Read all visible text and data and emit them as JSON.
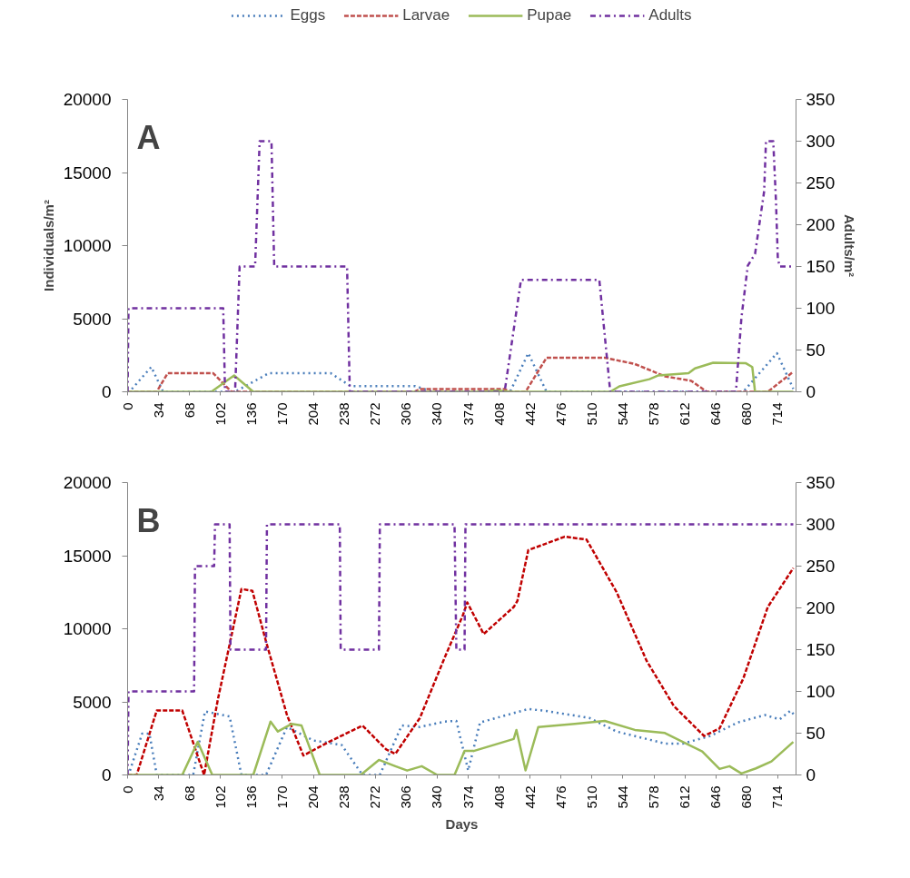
{
  "chart_data": [
    {
      "type": "line",
      "annotations": [
        "A"
      ],
      "ylabel": "Individuals/m²",
      "y2label": "Adults/m²",
      "legend": "top",
      "xlim": [
        0,
        734
      ],
      "xticks": [
        0,
        34,
        68,
        102,
        136,
        170,
        204,
        238,
        272,
        306,
        340,
        374,
        408,
        442,
        476,
        510,
        544,
        578,
        612,
        646,
        680,
        714
      ],
      "ylim": [
        0,
        20000
      ],
      "yticks": [
        0,
        5000,
        10000,
        15000,
        20000
      ],
      "y2lim": [
        0,
        350
      ],
      "y2ticks": [
        0,
        50,
        100,
        150,
        200,
        250,
        300,
        350
      ],
      "series": [
        {
          "name": "Eggs",
          "color": "#4a7ebb",
          "line_style": "dotted",
          "x": [
            0,
            2,
            26,
            39,
            118,
            155,
            223,
            245,
            316,
            335,
            420,
            440,
            460,
            676,
            713,
            731
          ],
          "values": [
            0,
            0,
            1700,
            0,
            0,
            1270,
            1270,
            390,
            390,
            0,
            0,
            2640,
            0,
            0,
            2640,
            200
          ]
        },
        {
          "name": "Larvae",
          "color": "#c0504d",
          "line_style": "dashed",
          "x": [
            0,
            32,
            44,
            94,
            114,
            315,
            321,
            414,
            420,
            437,
            460,
            524,
            557,
            590,
            619,
            636,
            703,
            731
          ],
          "values": [
            0,
            0,
            1270,
            1270,
            0,
            0,
            180,
            180,
            0,
            0,
            2330,
            2330,
            1900,
            1060,
            750,
            0,
            0,
            1370
          ]
        },
        {
          "name": "Pupae",
          "color": "#9bbb59",
          "line_style": "solid",
          "x": [
            0,
            92,
            117,
            138,
            391,
            405,
            420,
            530,
            540,
            573,
            583,
            616,
            623,
            643,
            679,
            686,
            689,
            731
          ],
          "values": [
            0,
            0,
            1120,
            0,
            0,
            100,
            0,
            0,
            370,
            860,
            1120,
            1270,
            1600,
            1990,
            1950,
            1690,
            0,
            0
          ]
        },
        {
          "name": "Adults",
          "color": "#7030a0",
          "line_style": "dashdot",
          "axis": "y2",
          "x": [
            0,
            1,
            105,
            107,
            118,
            123,
            140,
            145,
            158,
            161,
            241,
            244,
            414,
            432,
            518,
            530,
            668,
            674,
            681,
            689,
            699,
            701,
            709,
            712,
            714,
            716,
            731
          ],
          "values": [
            0,
            100,
            100,
            0,
            0,
            150,
            150,
            300,
            300,
            150,
            150,
            0,
            0,
            134,
            134,
            0,
            0,
            88,
            151,
            165,
            240,
            300,
            300,
            228,
            160,
            150,
            150
          ]
        }
      ]
    },
    {
      "type": "line",
      "annotations": [
        "B"
      ],
      "xlabel": "Days",
      "xlim": [
        0,
        734
      ],
      "xticks": [
        0,
        34,
        68,
        102,
        136,
        170,
        204,
        238,
        272,
        306,
        340,
        374,
        408,
        442,
        476,
        510,
        544,
        578,
        612,
        646,
        680,
        714
      ],
      "ylim": [
        0,
        20000
      ],
      "yticks": [
        0,
        5000,
        10000,
        15000,
        20000
      ],
      "y2lim": [
        0,
        350
      ],
      "y2ticks": [
        0,
        50,
        100,
        150,
        200,
        250,
        300,
        350
      ],
      "series": [
        {
          "color": "#4a7ebb",
          "line_style": "dotted",
          "x": [
            0,
            1,
            16,
            24,
            32,
            72,
            85,
            112,
            125,
            152,
            175,
            204,
            235,
            258,
            277,
            301,
            321,
            348,
            361,
            374,
            387,
            440,
            457,
            507,
            537,
            590,
            610,
            640,
            670,
            700,
            716,
            728,
            732
          ],
          "values": [
            0,
            0,
            2830,
            2830,
            0,
            0,
            4350,
            4000,
            0,
            0,
            3280,
            2360,
            2050,
            0,
            0,
            3380,
            3280,
            3650,
            3700,
            300,
            3590,
            4510,
            4400,
            3900,
            2970,
            2150,
            2150,
            2670,
            3590,
            4100,
            3800,
            4400,
            4100
          ]
        },
        {
          "color": "#c00000",
          "line_style": "dashed",
          "x": [
            0,
            10,
            32,
            60,
            84,
            99,
            125,
            137,
            152,
            175,
            193,
            221,
            258,
            284,
            294,
            321,
            348,
            368,
            373,
            391,
            424,
            428,
            440,
            480,
            504,
            537,
            570,
            600,
            633,
            650,
            676,
            703,
            731
          ],
          "values": [
            0,
            0,
            4410,
            4410,
            0,
            5130,
            12720,
            12600,
            9130,
            4100,
            1330,
            2260,
            3380,
            1740,
            1440,
            3900,
            8000,
            10900,
            11800,
            9640,
            11490,
            11900,
            15380,
            16300,
            16100,
            12500,
            7800,
            4700,
            2670,
            3180,
            6580,
            11490,
            14150
          ]
        },
        {
          "color": "#9bbb59",
          "line_style": "solid",
          "x": [
            0,
            60,
            77,
            93,
            138,
            157,
            165,
            180,
            191,
            211,
            256,
            276,
            294,
            307,
            323,
            340,
            359,
            370,
            380,
            424,
            427,
            437,
            451,
            491,
            524,
            557,
            590,
            631,
            650,
            661,
            674,
            690,
            707,
            731
          ],
          "values": [
            0,
            0,
            2260,
            0,
            0,
            3650,
            2970,
            3490,
            3380,
            0,
            0,
            1030,
            600,
            300,
            600,
            0,
            0,
            1640,
            1640,
            2460,
            3080,
            310,
            3280,
            3490,
            3700,
            3080,
            2870,
            1600,
            410,
            600,
            100,
            450,
            920,
            2260
          ]
        },
        {
          "color": "#7030a0",
          "line_style": "dashdot",
          "axis": "y2",
          "x": [
            0,
            1,
            73,
            74,
            95,
            96,
            112,
            113,
            152,
            153,
            233,
            234,
            276,
            277,
            359,
            361,
            370,
            371,
            731
          ],
          "values": [
            0,
            100,
            100,
            250,
            250,
            300,
            300,
            150,
            150,
            300,
            300,
            150,
            150,
            300,
            300,
            150,
            150,
            300,
            300
          ]
        }
      ]
    }
  ]
}
